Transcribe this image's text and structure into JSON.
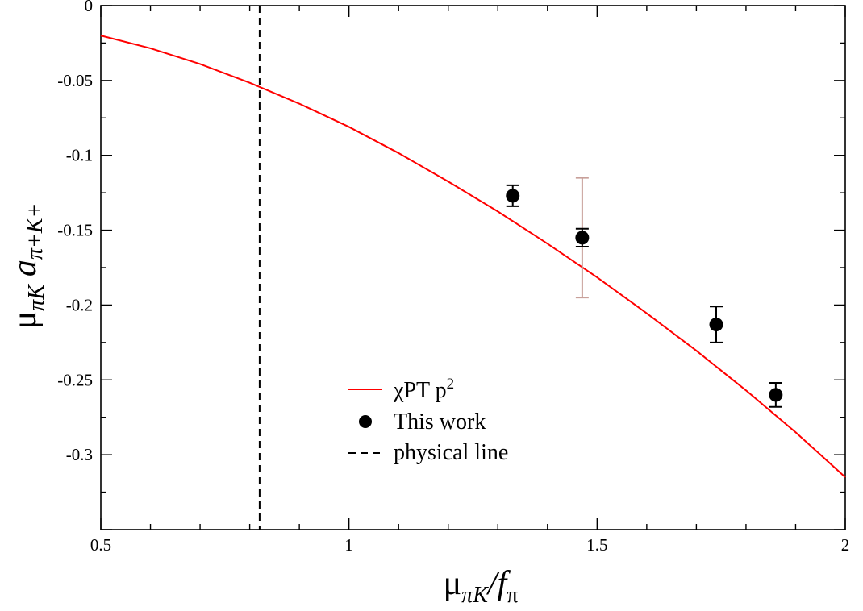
{
  "chart_data": {
    "type": "scatter",
    "title": "",
    "xlabel": {
      "main": "μ",
      "main_sub": "πK",
      "slash": "/",
      "denominator": "f",
      "denominator_sub": "π"
    },
    "ylabel": {
      "main": "μ",
      "main_sub": "πK",
      "a": "a",
      "a_sub": "π+K+"
    },
    "xlim": [
      0.5,
      2.0
    ],
    "ylim": [
      -0.35,
      0.0
    ],
    "x_ticks": [
      {
        "value": 0.5,
        "label": "0.5"
      },
      {
        "value": 1.0,
        "label": "1"
      },
      {
        "value": 1.5,
        "label": "1.5"
      },
      {
        "value": 2.0,
        "label": "2"
      }
    ],
    "y_ticks": [
      {
        "value": 0.0,
        "label": "0"
      },
      {
        "value": -0.05,
        "label": "-0.05"
      },
      {
        "value": -0.1,
        "label": "-0.1"
      },
      {
        "value": -0.15,
        "label": "-0.15"
      },
      {
        "value": -0.2,
        "label": "-0.2"
      },
      {
        "value": -0.25,
        "label": "-0.25"
      },
      {
        "value": -0.3,
        "label": "-0.3"
      }
    ],
    "grid": false,
    "series": [
      {
        "name": "χPT  p",
        "name_sup": "2",
        "kind": "line",
        "color": "#ff0000",
        "x": [
          0.5,
          0.6,
          0.7,
          0.8,
          0.9,
          1.0,
          1.1,
          1.2,
          1.3,
          1.4,
          1.5,
          1.6,
          1.7,
          1.8,
          1.9,
          2.0
        ],
        "y": [
          -0.02,
          -0.0285,
          -0.039,
          -0.0515,
          -0.0655,
          -0.081,
          -0.0985,
          -0.1175,
          -0.1375,
          -0.159,
          -0.1815,
          -0.2055,
          -0.2305,
          -0.257,
          -0.285,
          -0.315
        ]
      },
      {
        "name": "This work",
        "kind": "points",
        "color": "#000000",
        "points": [
          {
            "x": 1.33,
            "y": -0.127,
            "err_lo": -0.134,
            "err_hi": -0.12
          },
          {
            "x": 1.47,
            "y": -0.155,
            "err_lo": -0.161,
            "err_hi": -0.149
          },
          {
            "x": 1.74,
            "y": -0.213,
            "err_lo": -0.225,
            "err_hi": -0.201
          },
          {
            "x": 1.86,
            "y": -0.26,
            "err_lo": -0.268,
            "err_hi": -0.252
          }
        ]
      },
      {
        "name": "physical line",
        "kind": "vline",
        "color": "#000000",
        "x": 0.82
      }
    ],
    "extra_errorbar": {
      "color": "#c8a09a",
      "x": 1.47,
      "err_lo": -0.195,
      "err_hi": -0.115
    },
    "legend_position": "lower-middle"
  }
}
